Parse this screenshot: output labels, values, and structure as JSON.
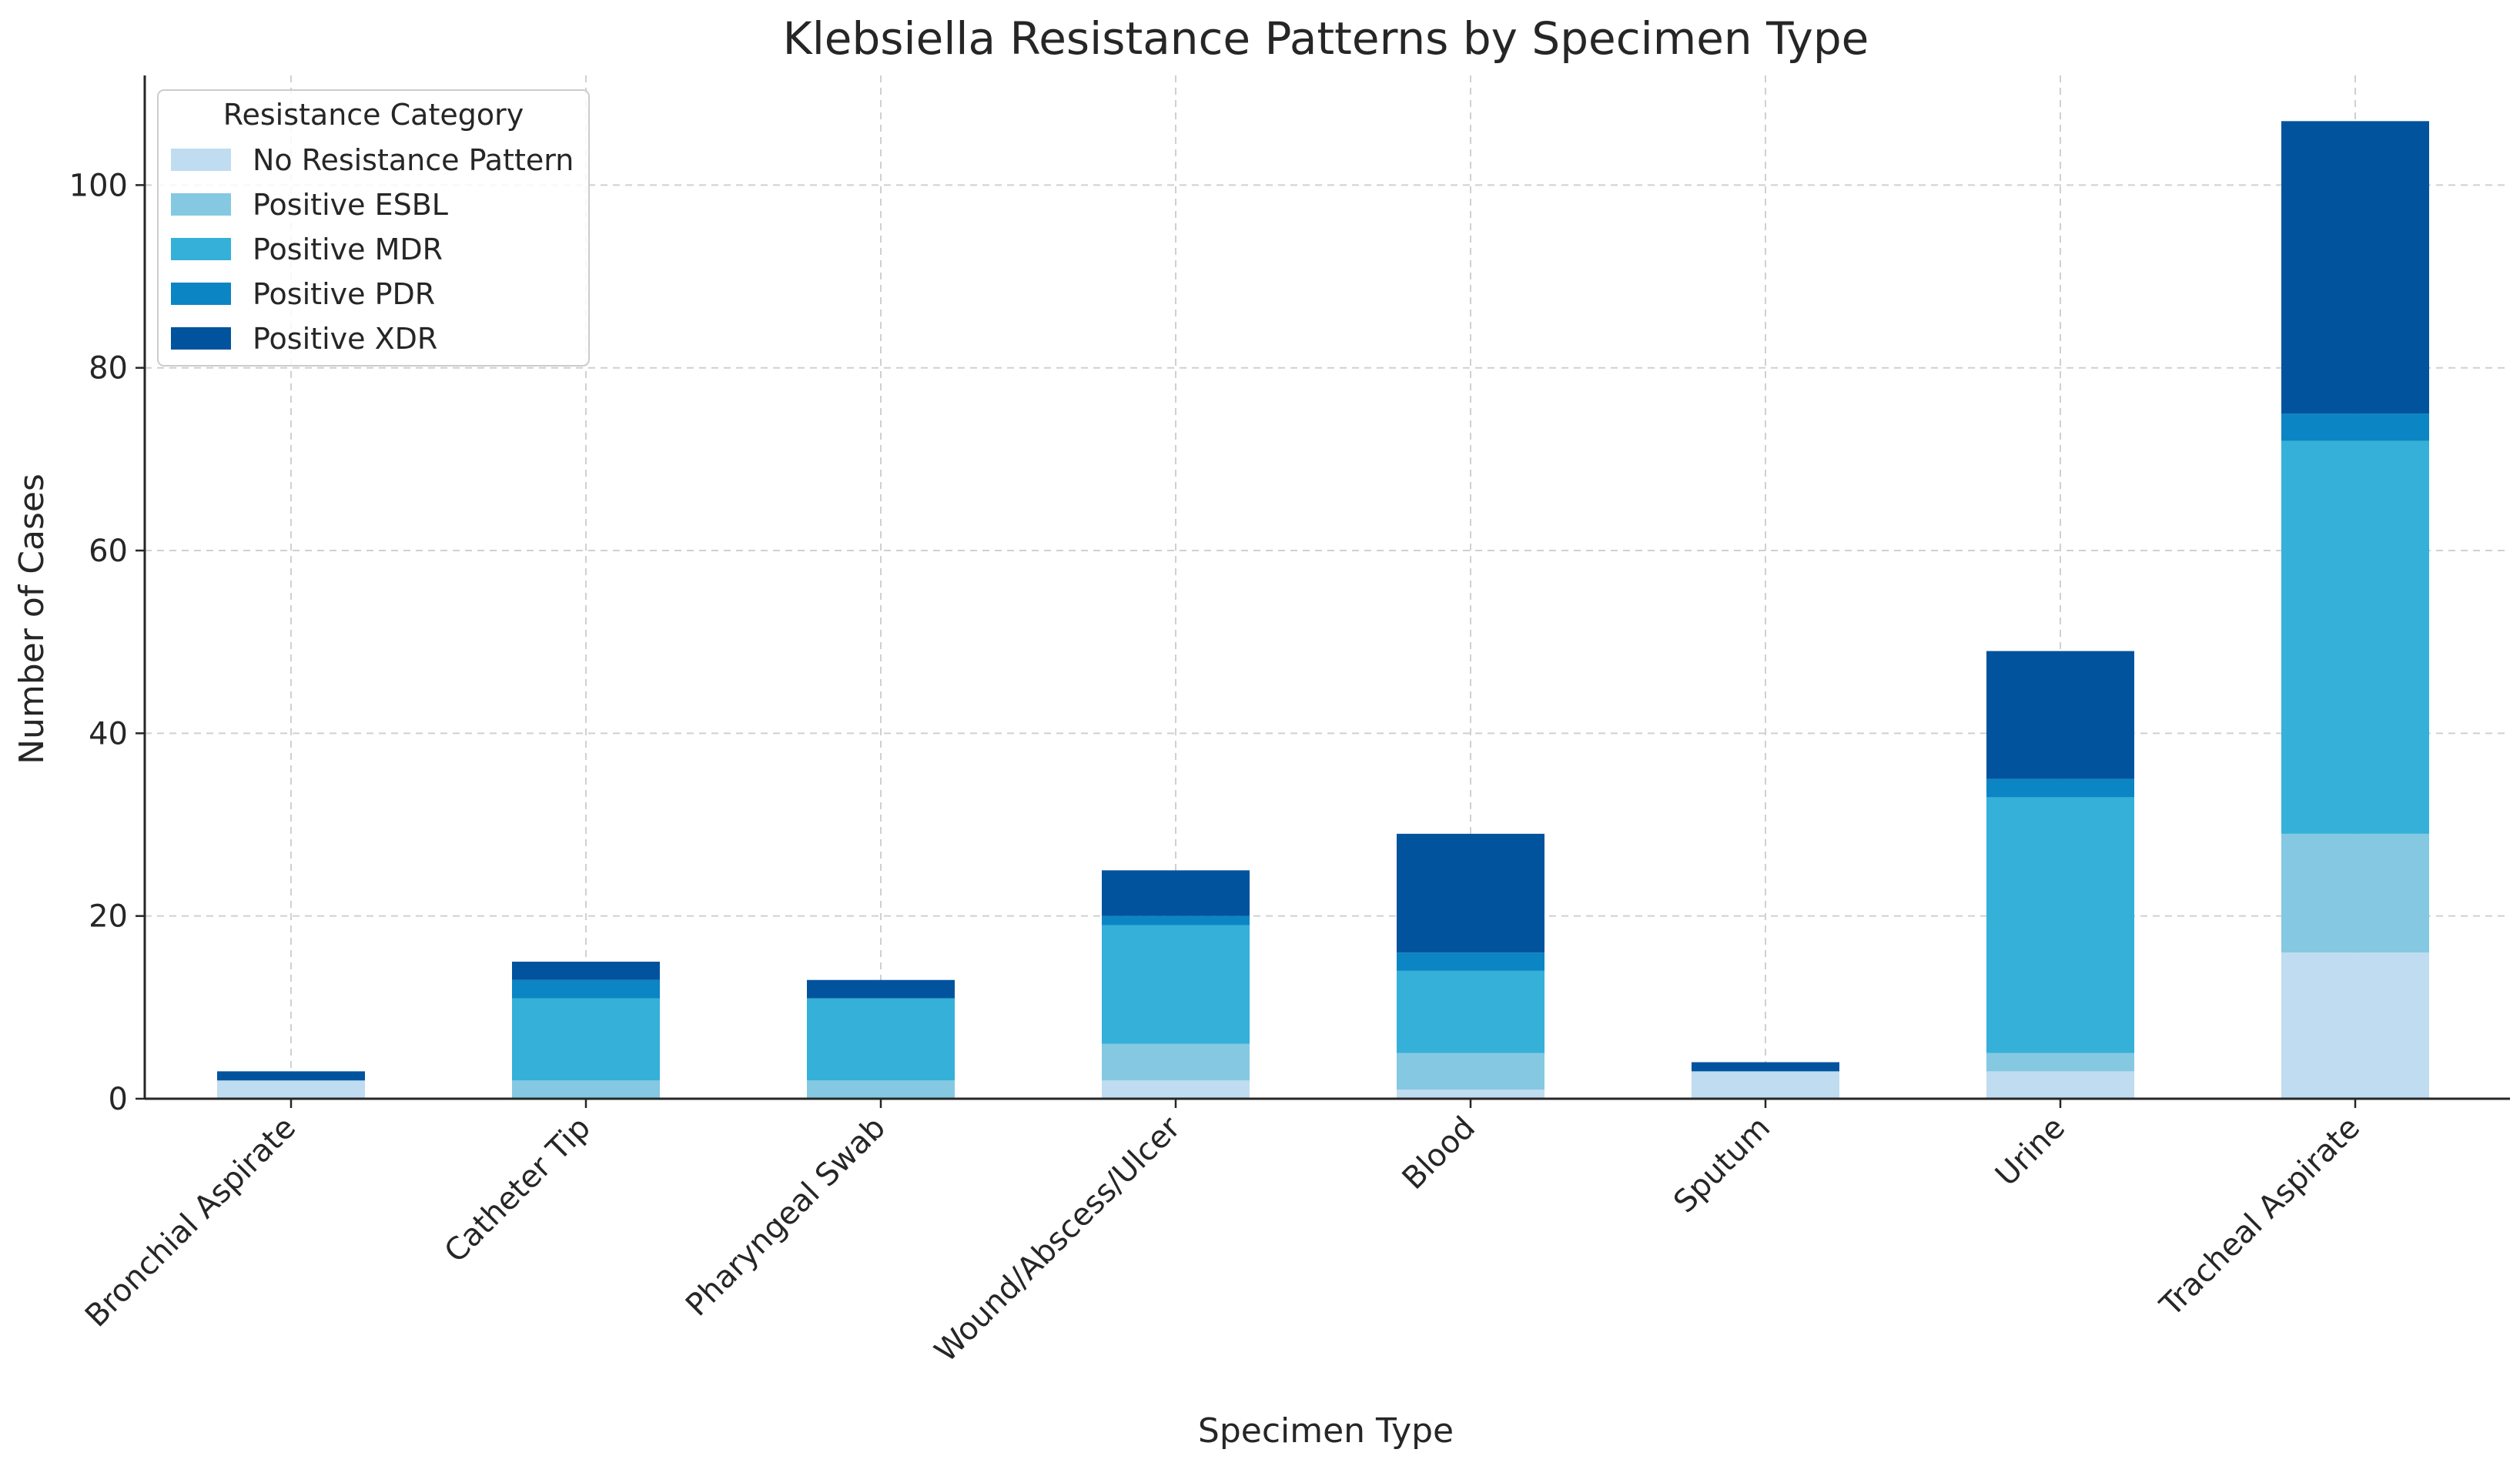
{
  "chart_data": {
    "type": "bar",
    "stacked": true,
    "title": "Klebsiella Resistance Patterns by Specimen Type",
    "xlabel": "Specimen Type",
    "ylabel": "Number of Cases",
    "ylim": [
      0,
      112
    ],
    "yticks": [
      0,
      20,
      40,
      60,
      80,
      100
    ],
    "grid": true,
    "legend": {
      "title": "Resistance Category",
      "position": "top-left"
    },
    "categories": [
      "Bronchial Aspirate",
      "Catheter Tip",
      "Pharyngeal Swab",
      "Wound/Abscess/Ulcer",
      "Blood",
      "Sputum",
      "Urine",
      "Tracheal Aspirate"
    ],
    "series": [
      {
        "name": "No Resistance Pattern",
        "color": "#c0dcf0",
        "values": [
          2,
          0,
          0,
          2,
          1,
          3,
          3,
          16
        ]
      },
      {
        "name": "Positive ESBL",
        "color": "#85c8e2",
        "values": [
          0,
          2,
          2,
          4,
          4,
          0,
          2,
          13
        ]
      },
      {
        "name": "Positive MDR",
        "color": "#35b0d8",
        "values": [
          0,
          9,
          9,
          13,
          9,
          0,
          28,
          43
        ]
      },
      {
        "name": "Positive PDR",
        "color": "#0b85c4",
        "values": [
          0,
          2,
          0,
          1,
          2,
          0,
          2,
          3
        ]
      },
      {
        "name": "Positive XDR",
        "color": "#02539e",
        "values": [
          1,
          2,
          2,
          5,
          13,
          1,
          14,
          32
        ]
      }
    ]
  }
}
